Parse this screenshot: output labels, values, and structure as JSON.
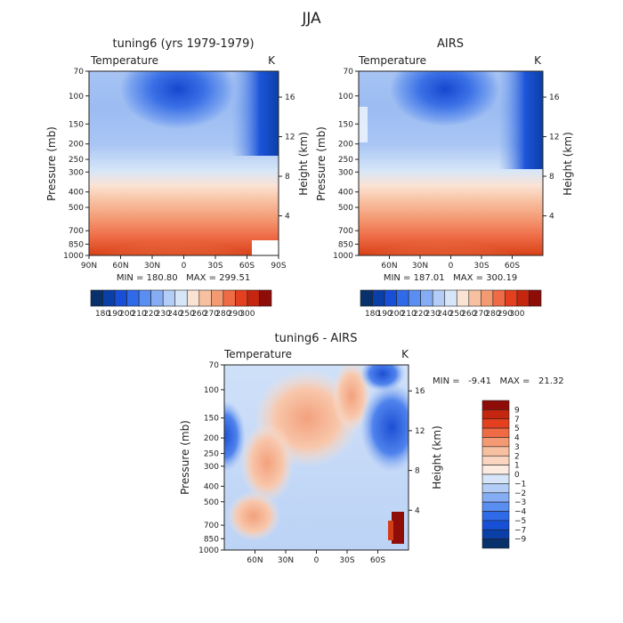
{
  "page_title": "JJA",
  "chart_data": [
    {
      "type": "heatmap",
      "title": "tuning6 (yrs 1979-1979)",
      "variable": "Temperature",
      "units": "K",
      "ylabel": "Pressure (mb)",
      "y2label": "Height (km)",
      "x_ticks": [
        "90N",
        "60N",
        "30N",
        "0",
        "30S",
        "60S",
        "90S"
      ],
      "y_ticks": [
        "70",
        "100",
        "150",
        "200",
        "250",
        "300",
        "400",
        "500",
        "700",
        "850",
        "1000"
      ],
      "y2_ticks": [
        "16",
        "12",
        "8",
        "4"
      ],
      "stats": "MIN = 180.80   MAX = 299.51",
      "min": 180.8,
      "max": 299.51
    },
    {
      "type": "heatmap",
      "title": "AIRS",
      "variable": "Temperature",
      "units": "K",
      "ylabel": "Pressure (mb)",
      "y2label": "Height (km)",
      "x_ticks": [
        "60N",
        "30N",
        "0",
        "30S",
        "60S"
      ],
      "y_ticks": [
        "70",
        "100",
        "150",
        "200",
        "250",
        "300",
        "400",
        "500",
        "700",
        "850",
        "1000"
      ],
      "y2_ticks": [
        "16",
        "12",
        "8",
        "4"
      ],
      "stats": "MIN = 187.01   MAX = 300.19",
      "min": 187.01,
      "max": 300.19
    },
    {
      "type": "heatmap",
      "title": "tuning6 - AIRS",
      "variable": "Temperature",
      "units": "K",
      "ylabel": "Pressure (mb)",
      "y2label": "Height (km)",
      "x_ticks": [
        "60N",
        "30N",
        "0",
        "30S",
        "60S"
      ],
      "y_ticks": [
        "70",
        "100",
        "150",
        "200",
        "250",
        "300",
        "400",
        "500",
        "700",
        "850",
        "1000"
      ],
      "y2_ticks": [
        "16",
        "12",
        "8",
        "4"
      ],
      "stats": "MIN =   -9.41   MAX =   21.32",
      "min": -9.41,
      "max": 21.32
    }
  ],
  "colorbars": {
    "absolute": {
      "labels": [
        "180",
        "190",
        "200",
        "210",
        "220",
        "230",
        "240",
        "250",
        "260",
        "270",
        "280",
        "290",
        "300"
      ],
      "colors": [
        "#08306b",
        "#0b3fa8",
        "#1750d6",
        "#2f6be8",
        "#5a8ef0",
        "#86adf3",
        "#b3cdf6",
        "#d6e6f8",
        "#fbe3d4",
        "#f7c0a1",
        "#f49a73",
        "#ee6b45",
        "#e4401f",
        "#c4260f",
        "#8e0d08"
      ]
    },
    "difference": {
      "labels": [
        "9",
        "7",
        "5",
        "4",
        "3",
        "2",
        "1",
        "0",
        "−1",
        "−2",
        "−3",
        "−4",
        "−5",
        "−7",
        "−9"
      ],
      "colors": [
        "#8e0d08",
        "#c4260f",
        "#e4401f",
        "#ee6b45",
        "#f49a73",
        "#f7c0a1",
        "#fad6c0",
        "#fcebe0",
        "#d6e6f8",
        "#b3cdf6",
        "#86adf3",
        "#5a8ef0",
        "#2f6be8",
        "#1750d6",
        "#0b3fa8",
        "#08306b"
      ]
    }
  }
}
